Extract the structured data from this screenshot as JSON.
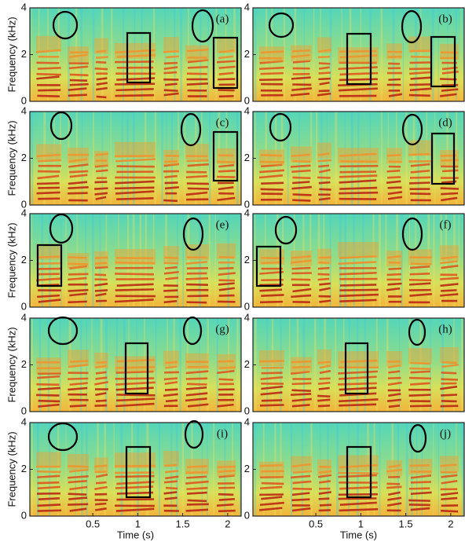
{
  "chart_data": [
    {
      "type": "spectrogram",
      "label": "(a)",
      "ylabel": "Frequency (kHz)",
      "ylim": [
        0,
        4
      ],
      "yticks": [
        0,
        2,
        4
      ]
    },
    {
      "type": "spectrogram",
      "label": "(b)",
      "ylim": [
        0,
        4
      ],
      "yticks": [
        0,
        2,
        4
      ]
    },
    {
      "type": "spectrogram",
      "label": "(c)",
      "ylabel": "Frequency (kHz)",
      "ylim": [
        0,
        4
      ],
      "yticks": [
        0,
        2,
        4
      ]
    },
    {
      "type": "spectrogram",
      "label": "(d)",
      "ylim": [
        0,
        4
      ],
      "yticks": [
        0,
        2,
        4
      ]
    },
    {
      "type": "spectrogram",
      "label": "(e)",
      "ylabel": "Frequency (kHz)",
      "ylim": [
        0,
        4
      ],
      "yticks": [
        0,
        2,
        4
      ]
    },
    {
      "type": "spectrogram",
      "label": "(f)",
      "ylim": [
        0,
        4
      ],
      "yticks": [
        0,
        2,
        4
      ]
    },
    {
      "type": "spectrogram",
      "label": "(g)",
      "ylabel": "Frequency (kHz)",
      "ylim": [
        0,
        4
      ],
      "yticks": [
        0,
        2,
        4
      ]
    },
    {
      "type": "spectrogram",
      "label": "(h)",
      "ylim": [
        0,
        4
      ],
      "yticks": [
        0,
        2,
        4
      ]
    },
    {
      "type": "spectrogram",
      "label": "(i)",
      "ylabel": "Frequency (kHz)",
      "ylim": [
        0,
        4
      ],
      "yticks": [
        0,
        2,
        4
      ],
      "xlim": [
        -0.2,
        2.15
      ],
      "xticks": [
        0.5,
        1,
        1.5,
        2
      ],
      "xlabel": "Time (s)"
    },
    {
      "type": "spectrogram",
      "label": "(j)",
      "ylim": [
        0,
        4
      ],
      "yticks": [
        0,
        2,
        4
      ],
      "xlim": [
        -0.2,
        2.15
      ],
      "xticks": [
        0.5,
        1,
        1.5,
        2
      ],
      "xlabel": "Time (s)"
    }
  ]
}
